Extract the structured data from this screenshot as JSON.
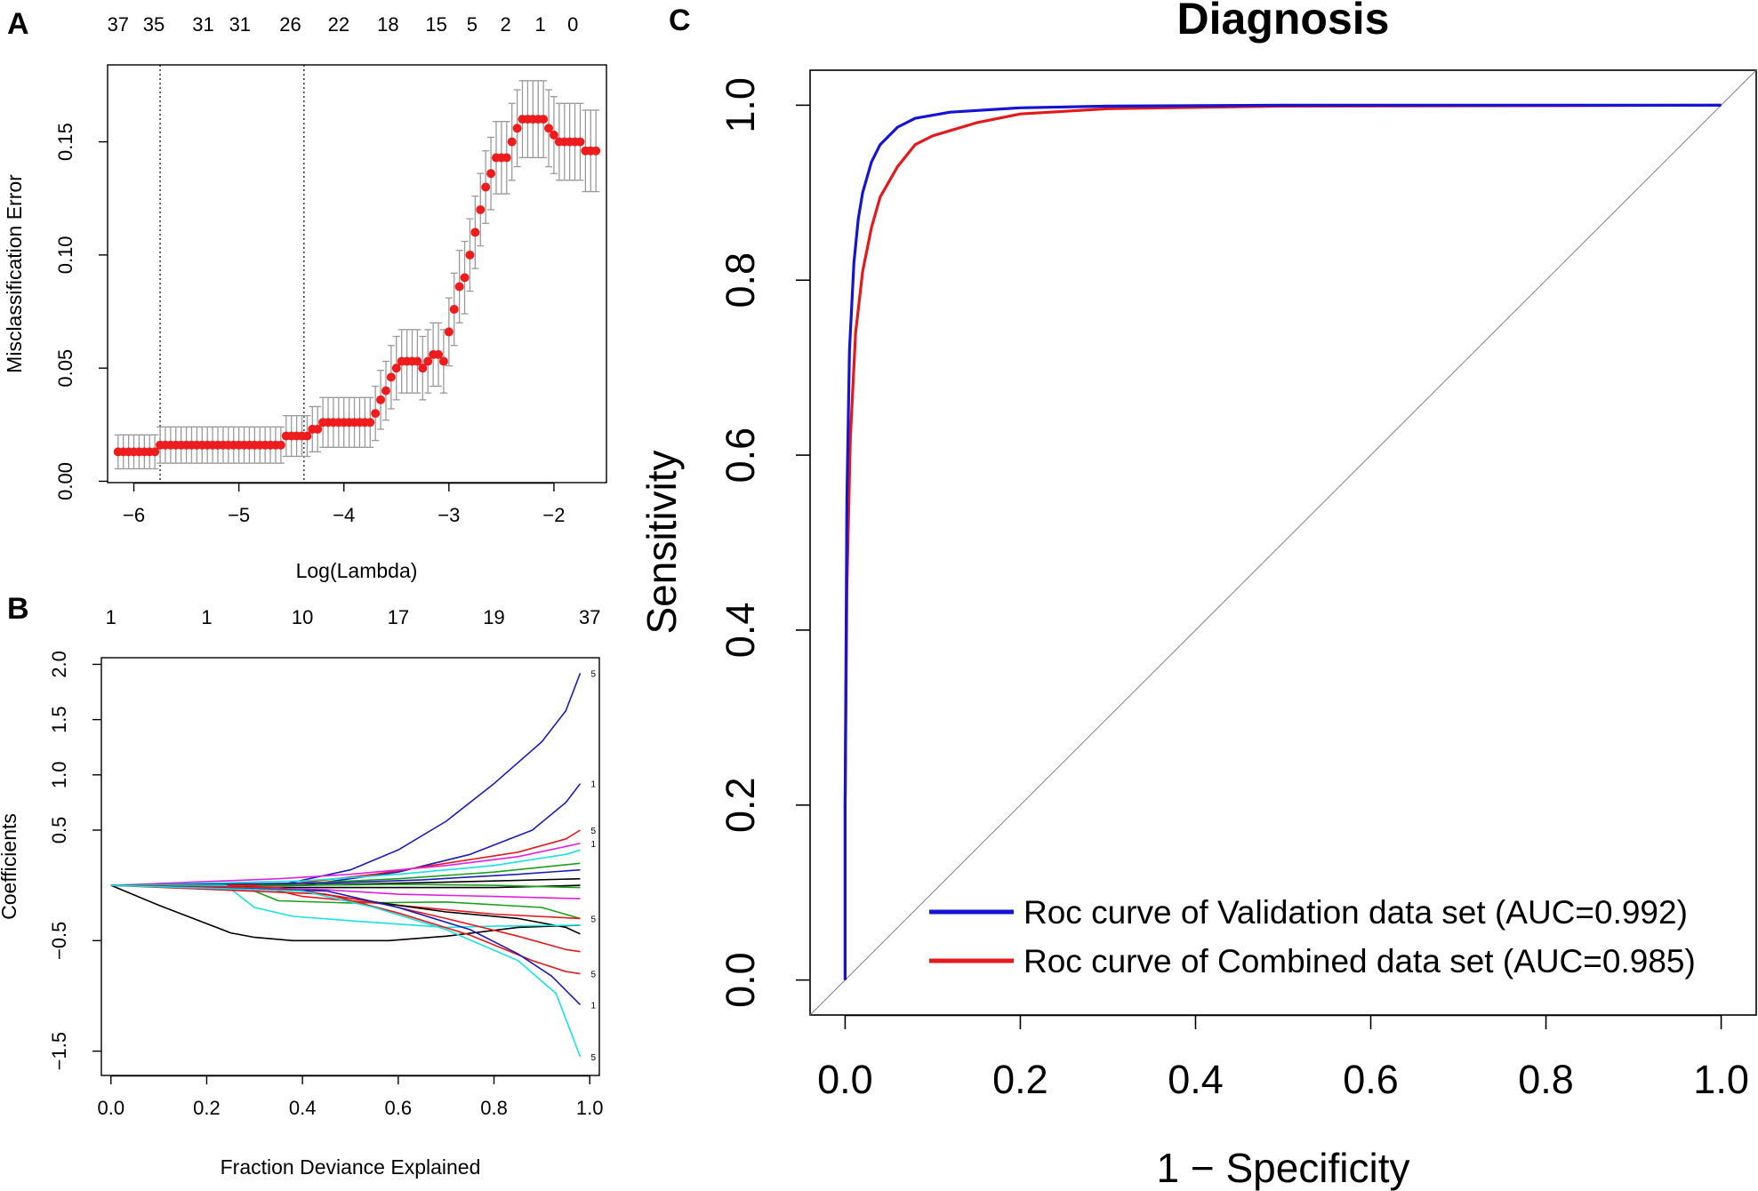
{
  "figure": {
    "panel_a_letter": "A",
    "panel_b_letter": "B",
    "panel_c_letter": "C"
  },
  "colors": {
    "points": "#ee1c1c",
    "errorbars": "#9a9a9a",
    "roc_validation": "#1414d2",
    "roc_combined": "#e31a1c",
    "diagonal": "#808080"
  },
  "chart_data": [
    {
      "id": "A",
      "type": "scatter",
      "title": "",
      "xlabel": "Log(Lambda)",
      "ylabel": "Misclassification Error",
      "xlim": [
        -6.25,
        -1.5
      ],
      "ylim": [
        -0.0006,
        0.184
      ],
      "xticks": [
        -6,
        -5,
        -4,
        -3,
        -2
      ],
      "xtick_labels": [
        "−6",
        "−5",
        "−4",
        "−3",
        "−2"
      ],
      "yticks": [
        0.0,
        0.05,
        0.1,
        0.15
      ],
      "ytick_labels": [
        "0.00",
        "0.05",
        "0.10",
        "0.15"
      ],
      "top_axis_x": [
        -6.15,
        -5.81,
        -5.34,
        -4.99,
        -4.51,
        -4.05,
        -3.58,
        -3.12,
        -2.78,
        -2.46,
        -2.13,
        -1.82
      ],
      "top_axis_labels": [
        "37",
        "35",
        "31",
        "31",
        "26",
        "22",
        "18",
        "15",
        "5",
        "2",
        "1",
        "0"
      ],
      "vlines": [
        -5.75,
        -4.38
      ],
      "x": [
        -6.15,
        -6.1,
        -6.05,
        -6.0,
        -5.95,
        -5.9,
        -5.85,
        -5.8,
        -5.75,
        -5.7,
        -5.65,
        -5.6,
        -5.55,
        -5.5,
        -5.45,
        -5.4,
        -5.35,
        -5.3,
        -5.25,
        -5.2,
        -5.15,
        -5.1,
        -5.05,
        -5.0,
        -4.95,
        -4.9,
        -4.85,
        -4.8,
        -4.75,
        -4.7,
        -4.65,
        -4.6,
        -4.55,
        -4.5,
        -4.45,
        -4.4,
        -4.35,
        -4.3,
        -4.25,
        -4.2,
        -4.15,
        -4.1,
        -4.05,
        -4.0,
        -3.95,
        -3.9,
        -3.85,
        -3.8,
        -3.75,
        -3.7,
        -3.65,
        -3.6,
        -3.55,
        -3.5,
        -3.45,
        -3.4,
        -3.35,
        -3.3,
        -3.25,
        -3.2,
        -3.15,
        -3.1,
        -3.05,
        -3.0,
        -2.95,
        -2.9,
        -2.85,
        -2.8,
        -2.75,
        -2.7,
        -2.65,
        -2.6,
        -2.55,
        -2.5,
        -2.45,
        -2.4,
        -2.35,
        -2.3,
        -2.25,
        -2.2,
        -2.15,
        -2.1,
        -2.05,
        -2.0,
        -1.95,
        -1.9,
        -1.85,
        -1.8,
        -1.75,
        -1.7,
        -1.65,
        -1.6
      ],
      "y": [
        0.013,
        0.013,
        0.013,
        0.013,
        0.013,
        0.013,
        0.013,
        0.013,
        0.016,
        0.016,
        0.016,
        0.016,
        0.016,
        0.016,
        0.016,
        0.016,
        0.016,
        0.016,
        0.016,
        0.016,
        0.016,
        0.016,
        0.016,
        0.016,
        0.016,
        0.016,
        0.016,
        0.016,
        0.016,
        0.016,
        0.016,
        0.016,
        0.02,
        0.02,
        0.02,
        0.02,
        0.02,
        0.023,
        0.023,
        0.026,
        0.026,
        0.026,
        0.026,
        0.026,
        0.026,
        0.026,
        0.026,
        0.026,
        0.026,
        0.03,
        0.036,
        0.04,
        0.046,
        0.05,
        0.053,
        0.053,
        0.053,
        0.053,
        0.05,
        0.053,
        0.056,
        0.056,
        0.053,
        0.066,
        0.076,
        0.086,
        0.09,
        0.1,
        0.11,
        0.12,
        0.13,
        0.136,
        0.143,
        0.143,
        0.143,
        0.15,
        0.156,
        0.16,
        0.16,
        0.16,
        0.16,
        0.16,
        0.156,
        0.153,
        0.15,
        0.15,
        0.15,
        0.15,
        0.15,
        0.146,
        0.146,
        0.146
      ],
      "err": [
        0.0075,
        0.0075,
        0.0075,
        0.0075,
        0.0075,
        0.0075,
        0.0075,
        0.0075,
        0.008,
        0.008,
        0.008,
        0.008,
        0.008,
        0.008,
        0.008,
        0.008,
        0.008,
        0.008,
        0.008,
        0.008,
        0.008,
        0.008,
        0.008,
        0.008,
        0.008,
        0.008,
        0.008,
        0.008,
        0.008,
        0.008,
        0.008,
        0.008,
        0.009,
        0.009,
        0.009,
        0.009,
        0.009,
        0.01,
        0.01,
        0.011,
        0.011,
        0.011,
        0.011,
        0.011,
        0.011,
        0.011,
        0.011,
        0.011,
        0.011,
        0.012,
        0.013,
        0.013,
        0.014,
        0.014,
        0.014,
        0.014,
        0.014,
        0.014,
        0.014,
        0.014,
        0.014,
        0.014,
        0.014,
        0.015,
        0.016,
        0.016,
        0.016,
        0.016,
        0.016,
        0.016,
        0.016,
        0.016,
        0.016,
        0.016,
        0.016,
        0.017,
        0.017,
        0.017,
        0.017,
        0.017,
        0.017,
        0.017,
        0.017,
        0.017,
        0.017,
        0.017,
        0.017,
        0.017,
        0.017,
        0.018,
        0.018,
        0.018
      ]
    },
    {
      "id": "B",
      "type": "line",
      "title": "",
      "xlabel": "Fraction Deviance Explained",
      "ylabel": "Coefficients",
      "xlim": [
        -0.02,
        1.02
      ],
      "ylim": [
        -1.72,
        2.06
      ],
      "xticks": [
        0.0,
        0.2,
        0.4,
        0.6,
        0.8,
        1.0
      ],
      "xtick_labels": [
        "0.0",
        "0.2",
        "0.4",
        "0.6",
        "0.8",
        "1.0"
      ],
      "yticks": [
        -1.5,
        -0.5,
        0.5,
        1.0,
        1.5,
        2.0
      ],
      "ytick_labels": [
        "−1.5",
        "−0.5",
        "0.5",
        "1.0",
        "1.5",
        "2.0"
      ],
      "top_axis_x": [
        0.0,
        0.2,
        0.4,
        0.6,
        0.8,
        1.0
      ],
      "top_axis_labels": [
        "1",
        "1",
        "10",
        "17",
        "19",
        "37"
      ],
      "end_labels": [
        "5",
        "1",
        "5",
        "1",
        "5",
        "5",
        "1",
        "5"
      ],
      "series": [
        {
          "name": "black-1",
          "color": "#000000",
          "x": [
            0.0,
            0.1,
            0.25,
            0.3,
            0.38,
            0.5,
            0.58,
            0.7,
            0.85,
            0.98
          ],
          "y": [
            0.0,
            -0.18,
            -0.43,
            -0.47,
            -0.5,
            -0.5,
            -0.5,
            -0.46,
            -0.38,
            -0.36
          ]
        },
        {
          "name": "blue-top",
          "color": "#1c1cb4",
          "x": [
            0.0,
            0.35,
            0.5,
            0.6,
            0.7,
            0.8,
            0.9,
            0.95,
            0.98
          ],
          "y": [
            0.0,
            0.0,
            0.14,
            0.32,
            0.58,
            0.92,
            1.3,
            1.58,
            1.92
          ]
        },
        {
          "name": "blue-2",
          "color": "#1c1cb4",
          "x": [
            0.0,
            0.4,
            0.6,
            0.75,
            0.88,
            0.95,
            0.98
          ],
          "y": [
            0.0,
            0.0,
            0.12,
            0.28,
            0.5,
            0.75,
            0.92
          ]
        },
        {
          "name": "red-1",
          "color": "#e31a1c",
          "x": [
            0.0,
            0.35,
            0.55,
            0.7,
            0.85,
            0.95,
            0.98
          ],
          "y": [
            0.0,
            0.0,
            0.1,
            0.2,
            0.3,
            0.42,
            0.5
          ]
        },
        {
          "name": "magenta-1",
          "color": "#e020e0",
          "x": [
            0.0,
            0.35,
            0.5,
            0.7,
            0.85,
            0.98
          ],
          "y": [
            0.0,
            0.06,
            0.1,
            0.18,
            0.26,
            0.38
          ]
        },
        {
          "name": "cyan-1",
          "color": "#18e0e0",
          "x": [
            0.0,
            0.4,
            0.6,
            0.8,
            0.95,
            0.98
          ],
          "y": [
            0.0,
            0.04,
            0.1,
            0.18,
            0.28,
            0.32
          ]
        },
        {
          "name": "green-1",
          "color": "#1ca01c",
          "x": [
            0.0,
            0.4,
            0.6,
            0.8,
            0.98
          ],
          "y": [
            0.0,
            0.02,
            0.06,
            0.12,
            0.2
          ]
        },
        {
          "name": "darkblue-3",
          "color": "#1c1cb4",
          "x": [
            0.0,
            0.45,
            0.65,
            0.85,
            0.98
          ],
          "y": [
            0.0,
            0.02,
            0.05,
            0.1,
            0.14
          ]
        },
        {
          "name": "black-2",
          "color": "#000000",
          "x": [
            0.0,
            0.4,
            0.6,
            0.8,
            0.98
          ],
          "y": [
            0.0,
            0.0,
            0.02,
            0.04,
            0.06
          ]
        },
        {
          "name": "black-3",
          "color": "#000000",
          "x": [
            0.0,
            0.4,
            0.6,
            0.8,
            0.98
          ],
          "y": [
            0.0,
            -0.02,
            -0.02,
            -0.02,
            0.0
          ]
        },
        {
          "name": "green-flat",
          "color": "#1ca01c",
          "x": [
            0.0,
            0.4,
            0.6,
            0.8,
            0.98
          ],
          "y": [
            0.0,
            0.0,
            0.01,
            0.0,
            -0.02
          ]
        },
        {
          "name": "magenta-2",
          "color": "#e020e0",
          "x": [
            0.0,
            0.45,
            0.6,
            0.8,
            0.98
          ],
          "y": [
            0.0,
            -0.04,
            -0.08,
            -0.1,
            -0.12
          ]
        },
        {
          "name": "green-2",
          "color": "#1ca01c",
          "x": [
            0.0,
            0.27,
            0.35,
            0.5,
            0.7,
            0.9,
            0.98
          ],
          "y": [
            0.0,
            0.0,
            -0.14,
            -0.16,
            -0.15,
            -0.2,
            -0.3
          ]
        },
        {
          "name": "red-2",
          "color": "#e31a1c",
          "x": [
            0.0,
            0.3,
            0.4,
            0.6,
            0.8,
            0.98
          ],
          "y": [
            0.0,
            0.0,
            -0.1,
            -0.18,
            -0.26,
            -0.3
          ]
        },
        {
          "name": "black-4",
          "color": "#000000",
          "x": [
            0.0,
            0.4,
            0.55,
            0.7,
            0.85,
            0.95,
            0.98
          ],
          "y": [
            0.0,
            -0.05,
            -0.15,
            -0.24,
            -0.3,
            -0.38,
            -0.44
          ]
        },
        {
          "name": "cyan-2",
          "color": "#18e0e0",
          "x": [
            0.0,
            0.24,
            0.3,
            0.38,
            0.5,
            0.6,
            0.7,
            0.8,
            0.98
          ],
          "y": [
            0.0,
            0.0,
            -0.2,
            -0.28,
            -0.32,
            -0.35,
            -0.38,
            -0.37,
            -0.36
          ]
        },
        {
          "name": "red-3",
          "color": "#e31a1c",
          "x": [
            0.0,
            0.35,
            0.55,
            0.7,
            0.85,
            0.95,
            0.98
          ],
          "y": [
            0.0,
            -0.02,
            -0.15,
            -0.3,
            -0.46,
            -0.58,
            -0.6
          ]
        },
        {
          "name": "red-4",
          "color": "#e31a1c",
          "x": [
            0.0,
            0.45,
            0.6,
            0.75,
            0.88,
            0.95,
            0.98
          ],
          "y": [
            0.0,
            -0.08,
            -0.25,
            -0.45,
            -0.68,
            -0.78,
            -0.8
          ]
        },
        {
          "name": "blue-bottom",
          "color": "#1c1cb4",
          "x": [
            0.0,
            0.45,
            0.6,
            0.75,
            0.85,
            0.92,
            0.98
          ],
          "y": [
            0.0,
            -0.05,
            -0.2,
            -0.4,
            -0.62,
            -0.82,
            -1.08
          ]
        },
        {
          "name": "cyan-bottom",
          "color": "#18e0e0",
          "x": [
            0.0,
            0.4,
            0.55,
            0.7,
            0.85,
            0.93,
            0.98
          ],
          "y": [
            0.0,
            -0.05,
            -0.2,
            -0.4,
            -0.68,
            -0.98,
            -1.55
          ]
        }
      ]
    },
    {
      "id": "C",
      "type": "line",
      "title": "Diagnosis",
      "xlabel": "1 − Specificity",
      "ylabel": "Sensitivity",
      "xlim": [
        -0.04,
        1.04
      ],
      "ylim": [
        -0.04,
        1.04
      ],
      "xticks": [
        0.0,
        0.2,
        0.4,
        0.6,
        0.8,
        1.0
      ],
      "xtick_labels": [
        "0.0",
        "0.2",
        "0.4",
        "0.6",
        "0.8",
        "1.0"
      ],
      "yticks": [
        0.0,
        0.2,
        0.4,
        0.6,
        0.8,
        1.0
      ],
      "ytick_labels": [
        "0.0",
        "0.2",
        "0.4",
        "0.6",
        "0.8",
        "1.0"
      ],
      "legend_position": "bottom-right",
      "series": [
        {
          "name": "Roc curve of Validation data set (AUC=0.992)",
          "color": "#1414d2",
          "auc": 0.992,
          "x": [
            0.0,
            0.0,
            0.002,
            0.005,
            0.01,
            0.015,
            0.02,
            0.03,
            0.04,
            0.06,
            0.08,
            0.12,
            0.2,
            0.3,
            0.5,
            1.0
          ],
          "y": [
            0.0,
            0.2,
            0.55,
            0.72,
            0.82,
            0.87,
            0.9,
            0.935,
            0.955,
            0.975,
            0.985,
            0.992,
            0.997,
            0.999,
            1.0,
            1.0
          ]
        },
        {
          "name": "Roc curve of Combined data set (AUC=0.985)",
          "color": "#e31a1c",
          "auc": 0.985,
          "x": [
            0.0,
            0.0,
            0.002,
            0.006,
            0.012,
            0.02,
            0.03,
            0.04,
            0.06,
            0.08,
            0.1,
            0.15,
            0.2,
            0.3,
            0.5,
            1.0
          ],
          "y": [
            0.0,
            0.2,
            0.45,
            0.62,
            0.74,
            0.81,
            0.86,
            0.895,
            0.93,
            0.955,
            0.965,
            0.98,
            0.99,
            0.996,
            0.999,
            1.0
          ]
        },
        {
          "name": "reference diagonal",
          "color": "#808080",
          "x": [
            0.0,
            1.0
          ],
          "y": [
            0.0,
            1.0
          ]
        }
      ]
    }
  ]
}
